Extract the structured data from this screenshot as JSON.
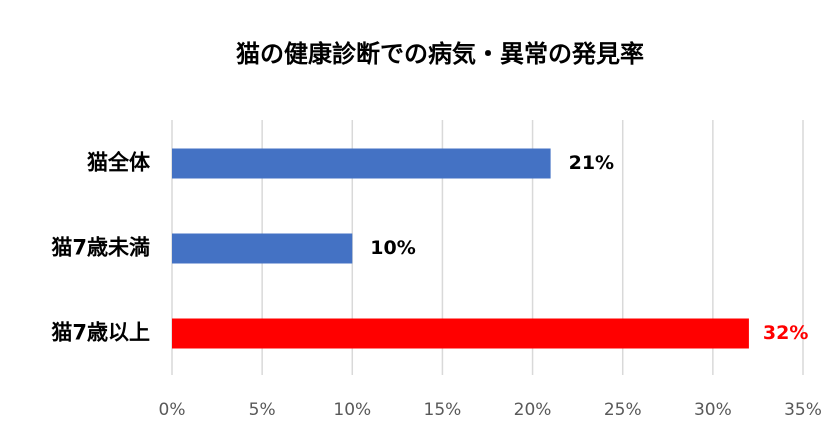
{
  "chart_data": {
    "type": "bar",
    "orientation": "horizontal",
    "title": "猫の健康診断での病気・異常の発見率",
    "categories": [
      "猫全体",
      "猫7歳未満",
      "猫7歳以上"
    ],
    "values": [
      21,
      10,
      32
    ],
    "value_labels": [
      "21%",
      "10%",
      "32%"
    ],
    "colors": [
      "#4472c4",
      "#4472c4",
      "#ff0000"
    ],
    "value_label_colors": [
      "#000000",
      "#000000",
      "#ff0000"
    ],
    "xlim": [
      0,
      35
    ],
    "xticks": [
      {
        "value": 0,
        "label": "0%"
      },
      {
        "value": 5,
        "label": "5%"
      },
      {
        "value": 10,
        "label": "10%"
      },
      {
        "value": 15,
        "label": "15%"
      },
      {
        "value": 20,
        "label": "20%"
      },
      {
        "value": 25,
        "label": "25%"
      },
      {
        "value": 30,
        "label": "30%"
      },
      {
        "value": 35,
        "label": "35%"
      }
    ],
    "grid": true
  }
}
